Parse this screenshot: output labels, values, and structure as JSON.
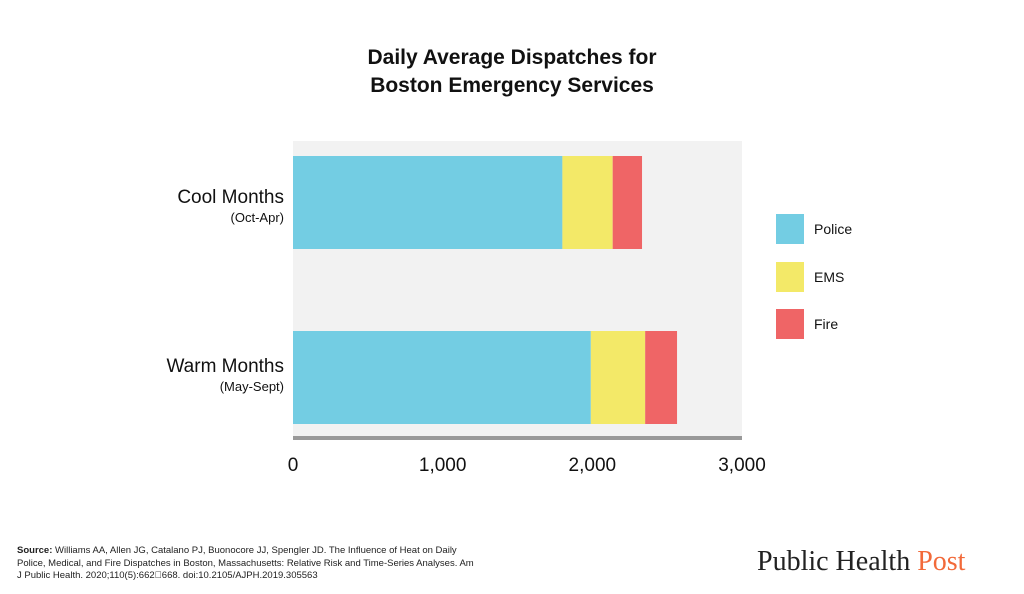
{
  "chart_data": {
    "type": "bar",
    "orientation": "horizontal",
    "stacked": true,
    "title": "Daily Average Dispatches for Boston Emergency Services",
    "title_lines": [
      "Daily Average Dispatches for",
      "Boston Emergency Services"
    ],
    "categories": [
      {
        "label": "Cool Months",
        "sublabel": "(Oct-Apr)"
      },
      {
        "label": "Warm Months",
        "sublabel": "(May-Sept)"
      }
    ],
    "series": [
      {
        "name": "Police",
        "color": "#73cde3",
        "values": [
          1800,
          1990
        ]
      },
      {
        "name": "EMS",
        "color": "#f3e968",
        "values": [
          336,
          363
        ]
      },
      {
        "name": "Fire",
        "color": "#ef6566",
        "values": [
          196,
          213
        ]
      }
    ],
    "xlim": [
      0,
      3000
    ],
    "xticks": [
      "0",
      "1,000",
      "2,000",
      "3,000"
    ],
    "xtick_values": [
      0,
      1000,
      2000,
      3000
    ],
    "xlabel": "",
    "ylabel": "",
    "grid": false,
    "legend": "right",
    "plot_background": "#f2f2f2",
    "axis_color": "#999999"
  },
  "footer": {
    "source_label": "Source:",
    "source_text": " Williams AA, Allen JG, Catalano PJ, Buonocore JJ, Spengler JD. The Influence of Heat on Daily Police, Medical, and Fire Dispatches in Boston, Massachusetts: Relative Risk and Time-Series Analyses. Am J Public Health. 2020;110(5):662\u0000668. doi:10.2105/AJPH.2019.305563",
    "logo_part1": "Public Health ",
    "logo_part2": "Post"
  }
}
